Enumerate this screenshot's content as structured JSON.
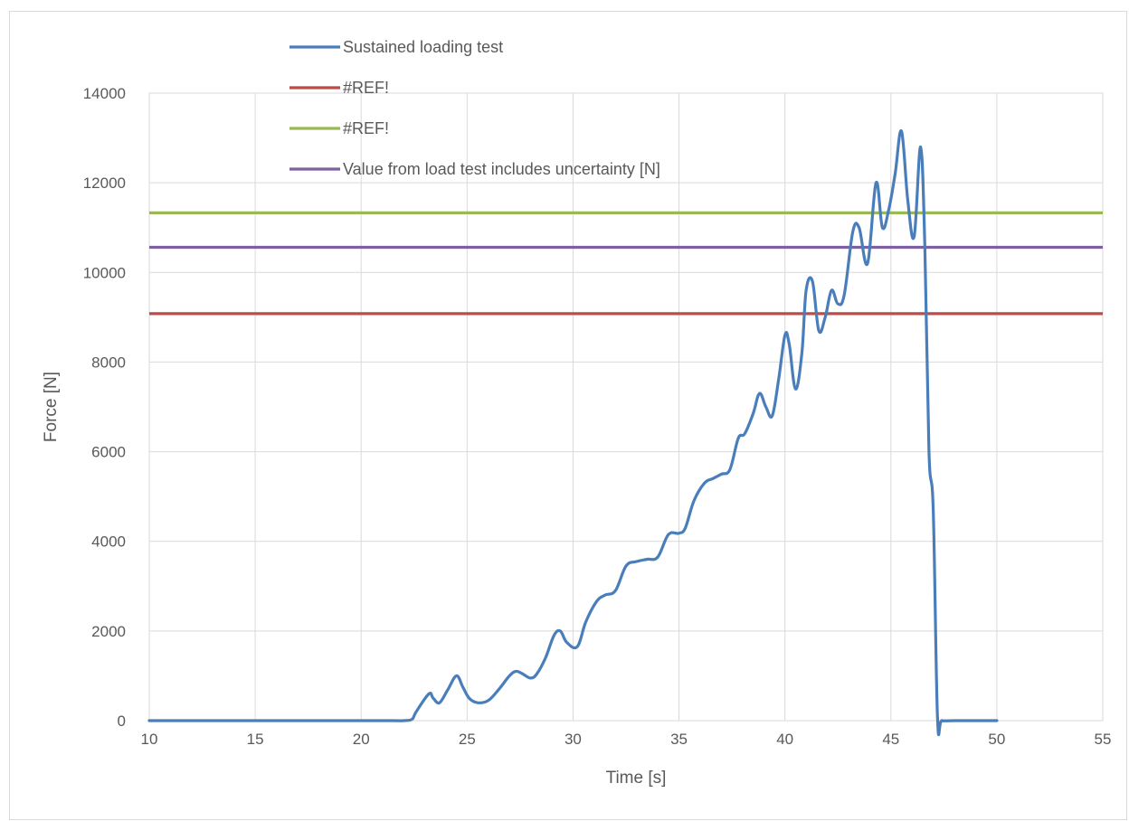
{
  "chart_data": {
    "type": "line",
    "title": "",
    "xlabel": "Time [s]",
    "ylabel": "Force [N]",
    "xlim": [
      10,
      55
    ],
    "ylim": [
      0,
      14000
    ],
    "grid": true,
    "legend_position": "top",
    "x_ticks": [
      10,
      15,
      20,
      25,
      30,
      35,
      40,
      45,
      50,
      55
    ],
    "y_ticks": [
      0,
      2000,
      4000,
      6000,
      8000,
      10000,
      12000,
      14000
    ],
    "series": [
      {
        "name": "Sustained loading test",
        "color": "#4a7ebb",
        "kind": "curve",
        "x": [
          10,
          12,
          14,
          15.5,
          16,
          18,
          20,
          21.5,
          22,
          22.4,
          22.6,
          23.2,
          23.4,
          23.7,
          24.1,
          24.5,
          24.8,
          25.1,
          25.5,
          26,
          26.5,
          27,
          27.3,
          27.6,
          28,
          28.3,
          28.7,
          29.1,
          29.4,
          29.7,
          30.2,
          30.6,
          31.1,
          31.5,
          32,
          32.5,
          33,
          33.5,
          34,
          34.5,
          35,
          35.3,
          35.7,
          36.2,
          36.6,
          37,
          37.4,
          37.8,
          38.1,
          38.5,
          38.8,
          39.1,
          39.4,
          39.7,
          40,
          40.2,
          40.5,
          40.8,
          41,
          41.3,
          41.6,
          41.9,
          42.2,
          42.5,
          42.8,
          43.2,
          43.5,
          43.9,
          44.3,
          44.6,
          44.9,
          45.2,
          45.5,
          45.8,
          46.1,
          46.4,
          46.6,
          46.8,
          47,
          47.2,
          47.4,
          48,
          50
        ],
        "y": [
          0,
          0,
          0,
          0,
          0,
          0,
          0,
          0,
          0,
          30,
          200,
          600,
          500,
          400,
          700,
          1000,
          750,
          500,
          400,
          450,
          700,
          1000,
          1100,
          1050,
          950,
          1050,
          1400,
          1900,
          2000,
          1750,
          1650,
          2200,
          2650,
          2800,
          2900,
          3450,
          3550,
          3600,
          3650,
          4150,
          4180,
          4300,
          4900,
          5300,
          5400,
          5500,
          5600,
          6300,
          6400,
          6850,
          7300,
          7000,
          6800,
          7600,
          8600,
          8400,
          7400,
          8200,
          9600,
          9800,
          8700,
          9000,
          9600,
          9300,
          9500,
          10900,
          11000,
          10200,
          12000,
          11000,
          11400,
          12200,
          13150,
          11600,
          10800,
          12800,
          10600,
          6000,
          4700,
          80,
          0,
          0,
          0
        ]
      },
      {
        "name": "#REF!",
        "color": "#be4b48",
        "kind": "hline",
        "x": [
          10,
          55
        ],
        "y": [
          9080,
          9080
        ]
      },
      {
        "name": "#REF!",
        "color": "#98b954",
        "kind": "hline",
        "x": [
          10,
          55
        ],
        "y": [
          11330,
          11330
        ]
      },
      {
        "name": "Value from load test includes uncertainty [N]",
        "color": "#7d60a0",
        "kind": "hline",
        "x": [
          10,
          55
        ],
        "y": [
          10560,
          10560
        ]
      }
    ]
  }
}
